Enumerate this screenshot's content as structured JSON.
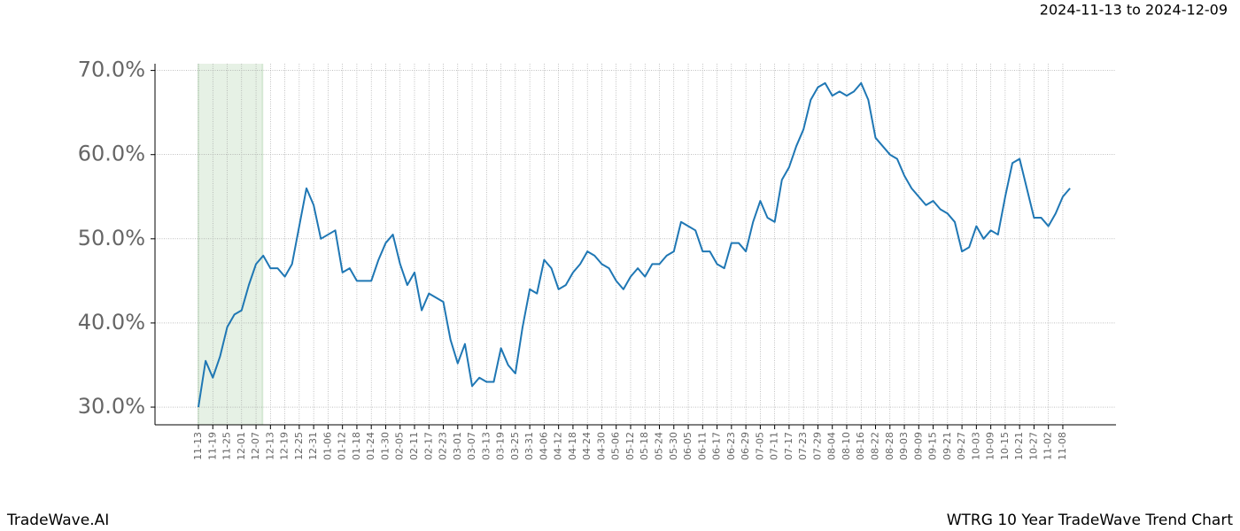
{
  "chart_data": {
    "type": "line",
    "subtitle": "2024-11-13 to 2024-12-09",
    "footer_left": "TradeWave.AI",
    "footer_right": "WTRG 10 Year TradeWave Trend Chart",
    "color": "#1f77b4",
    "highlight_color": "#d5e8d4",
    "grid": true,
    "categories": [
      "11-13",
      null,
      "11-19",
      null,
      "11-25",
      null,
      "12-01",
      null,
      "12-07",
      null,
      "12-13",
      null,
      "12-19",
      null,
      "12-25",
      null,
      "12-31",
      null,
      "01-06",
      null,
      "01-12",
      null,
      "01-18",
      null,
      "01-24",
      null,
      "01-30",
      null,
      "02-05",
      null,
      "02-11",
      null,
      "02-17",
      null,
      "02-23",
      null,
      "03-01",
      null,
      "03-07",
      null,
      "03-13",
      null,
      "03-19",
      null,
      "03-25",
      null,
      "03-31",
      null,
      "04-06",
      null,
      "04-12",
      null,
      "04-18",
      null,
      "04-24",
      null,
      "04-30",
      null,
      "05-06",
      null,
      "05-12",
      null,
      "05-18",
      null,
      "05-24",
      null,
      "05-30",
      null,
      "06-05",
      null,
      "06-11",
      null,
      "06-17",
      null,
      "06-23",
      null,
      "06-29",
      null,
      "07-05",
      null,
      "07-11",
      null,
      "07-17",
      null,
      "07-23",
      null,
      "07-29",
      null,
      "08-04",
      null,
      "08-10",
      null,
      "08-16",
      null,
      "08-22",
      null,
      "08-28",
      null,
      "09-03",
      null,
      "09-09",
      null,
      "09-15",
      null,
      "09-21",
      null,
      "09-27",
      null,
      "10-03",
      null,
      "10-09",
      null,
      "10-15",
      null,
      "10-21",
      null,
      "10-27",
      null,
      "11-02",
      null,
      "11-08",
      null
    ],
    "values": [
      30,
      35.5,
      33.5,
      36,
      39.5,
      41,
      41.5,
      44.5,
      47,
      48,
      46.5,
      46.5,
      45.5,
      47,
      51.5,
      56,
      54,
      50,
      50.5,
      51,
      46,
      46.5,
      45,
      45,
      45,
      47.5,
      49.5,
      50.5,
      47,
      44.5,
      46,
      41.5,
      43.5,
      43,
      42.5,
      38,
      35.2,
      37.5,
      32.5,
      33.5,
      33,
      33,
      37,
      35,
      34,
      39.5,
      44,
      43.5,
      47.5,
      46.5,
      44,
      44.5,
      46,
      47,
      48.5,
      48,
      47,
      46.5,
      45,
      44,
      45.5,
      46.5,
      45.5,
      47,
      47,
      48,
      48.5,
      52,
      51.5,
      51,
      48.5,
      48.5,
      47,
      46.5,
      49.5,
      49.5,
      48.5,
      52,
      54.5,
      52.5,
      52,
      57,
      58.5,
      61,
      63,
      66.5,
      68,
      68.5,
      67,
      67.5,
      67,
      67.5,
      68.5,
      66.5,
      62,
      61,
      60,
      59.5,
      57.5,
      56,
      55,
      54,
      54.5,
      53.5,
      53,
      52,
      48.5,
      49,
      51.5,
      50,
      51,
      50.5,
      55,
      59,
      59.5,
      56,
      52.5,
      52.5,
      51.5,
      53,
      55,
      56
    ],
    "ylim": [
      27.9,
      70.8
    ],
    "yticks": [
      {
        "value": 30,
        "label": "30.0%"
      },
      {
        "value": 40,
        "label": "40.0%"
      },
      {
        "value": 50,
        "label": "50.0%"
      },
      {
        "value": 60,
        "label": "60.0%"
      },
      {
        "value": 70,
        "label": "70.0%"
      }
    ]
  }
}
